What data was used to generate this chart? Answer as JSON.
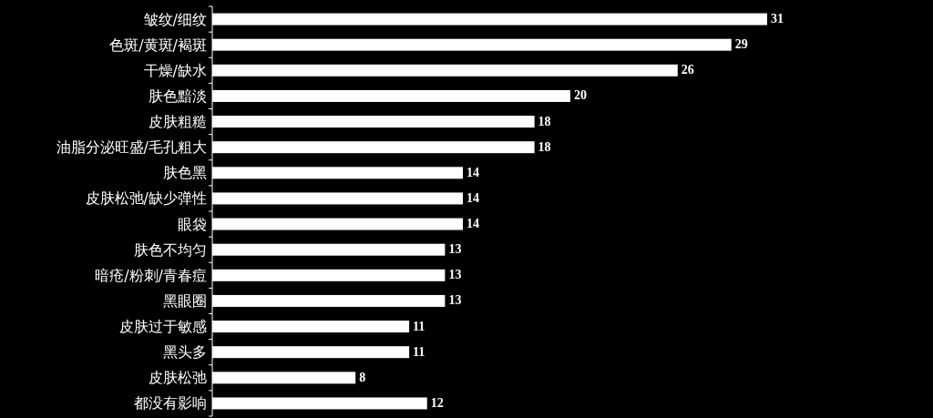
{
  "chart_data": {
    "type": "bar",
    "orientation": "horizontal",
    "categories": [
      "皱纹/细纹",
      "色斑/黄斑/褐斑",
      "干燥/缺水",
      "肤色黯淡",
      "皮肤粗糙",
      "油脂分泌旺盛/毛孔粗大",
      "肤色黑",
      "皮肤松弛/缺少弹性",
      "眼袋",
      "肤色不均匀",
      "暗疮/粉刺/青春痘",
      "黑眼圈",
      "皮肤过于敏感",
      "黑头多",
      "皮肤松弛",
      "都没有影响"
    ],
    "values": [
      31,
      29,
      26,
      20,
      18,
      18,
      14,
      14,
      14,
      13,
      13,
      13,
      11,
      11,
      8,
      12
    ],
    "color": "#ffffff",
    "data_labels": true
  }
}
